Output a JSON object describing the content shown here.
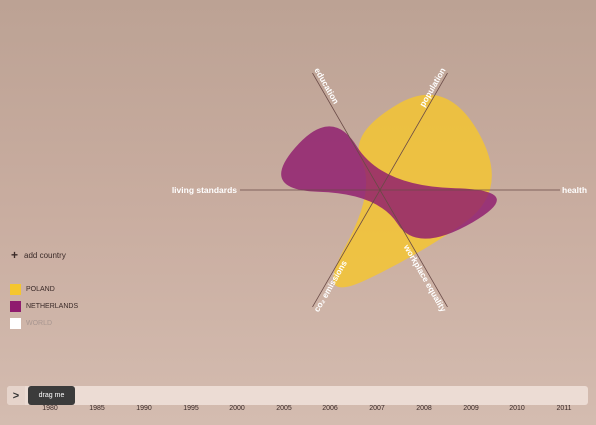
{
  "chart_data": {
    "type": "radar",
    "axes": [
      {
        "id": "education",
        "label": "education",
        "angle": 120
      },
      {
        "id": "population",
        "label": "population",
        "angle": 60
      },
      {
        "id": "health",
        "label": "health",
        "angle": 0
      },
      {
        "id": "workplace_equality",
        "label": "workplace equality",
        "angle": -60
      },
      {
        "id": "co2_emissions",
        "label": "co₂ emissions",
        "angle": -120
      },
      {
        "id": "living_standards",
        "label": "living standards",
        "angle": 180
      }
    ],
    "series": [
      {
        "name": "POLAND",
        "color": "#f5c62e",
        "values": {
          "education": 0.48,
          "population": 0.98,
          "health": 0.97,
          "workplace_equality": 0.56,
          "co2_emissions": 0.98,
          "living_standards": 0.03
        }
      },
      {
        "name": "NETHERLANDS",
        "color": "#8f1b6e",
        "values": {
          "education": 0.72,
          "population": 0.03,
          "health": 1.1,
          "workplace_equality": 0.55,
          "co2_emissions": 0.03,
          "living_standards": 0.9
        }
      }
    ],
    "legend_position": "bottom-left"
  },
  "add_country_label": "add country",
  "legend": [
    {
      "name": "POLAND",
      "color": "#f5c62e",
      "active": true
    },
    {
      "name": "NETHERLANDS",
      "color": "#8f1b6e",
      "active": true
    },
    {
      "name": "WORLD",
      "color": "#ffffff",
      "active": false
    }
  ],
  "timeline": {
    "play_label": ">",
    "handle_label": "drag me",
    "years": [
      "1980",
      "1985",
      "1990",
      "1995",
      "2000",
      "2005",
      "2006",
      "2007",
      "2008",
      "2009",
      "2010",
      "2011"
    ]
  }
}
